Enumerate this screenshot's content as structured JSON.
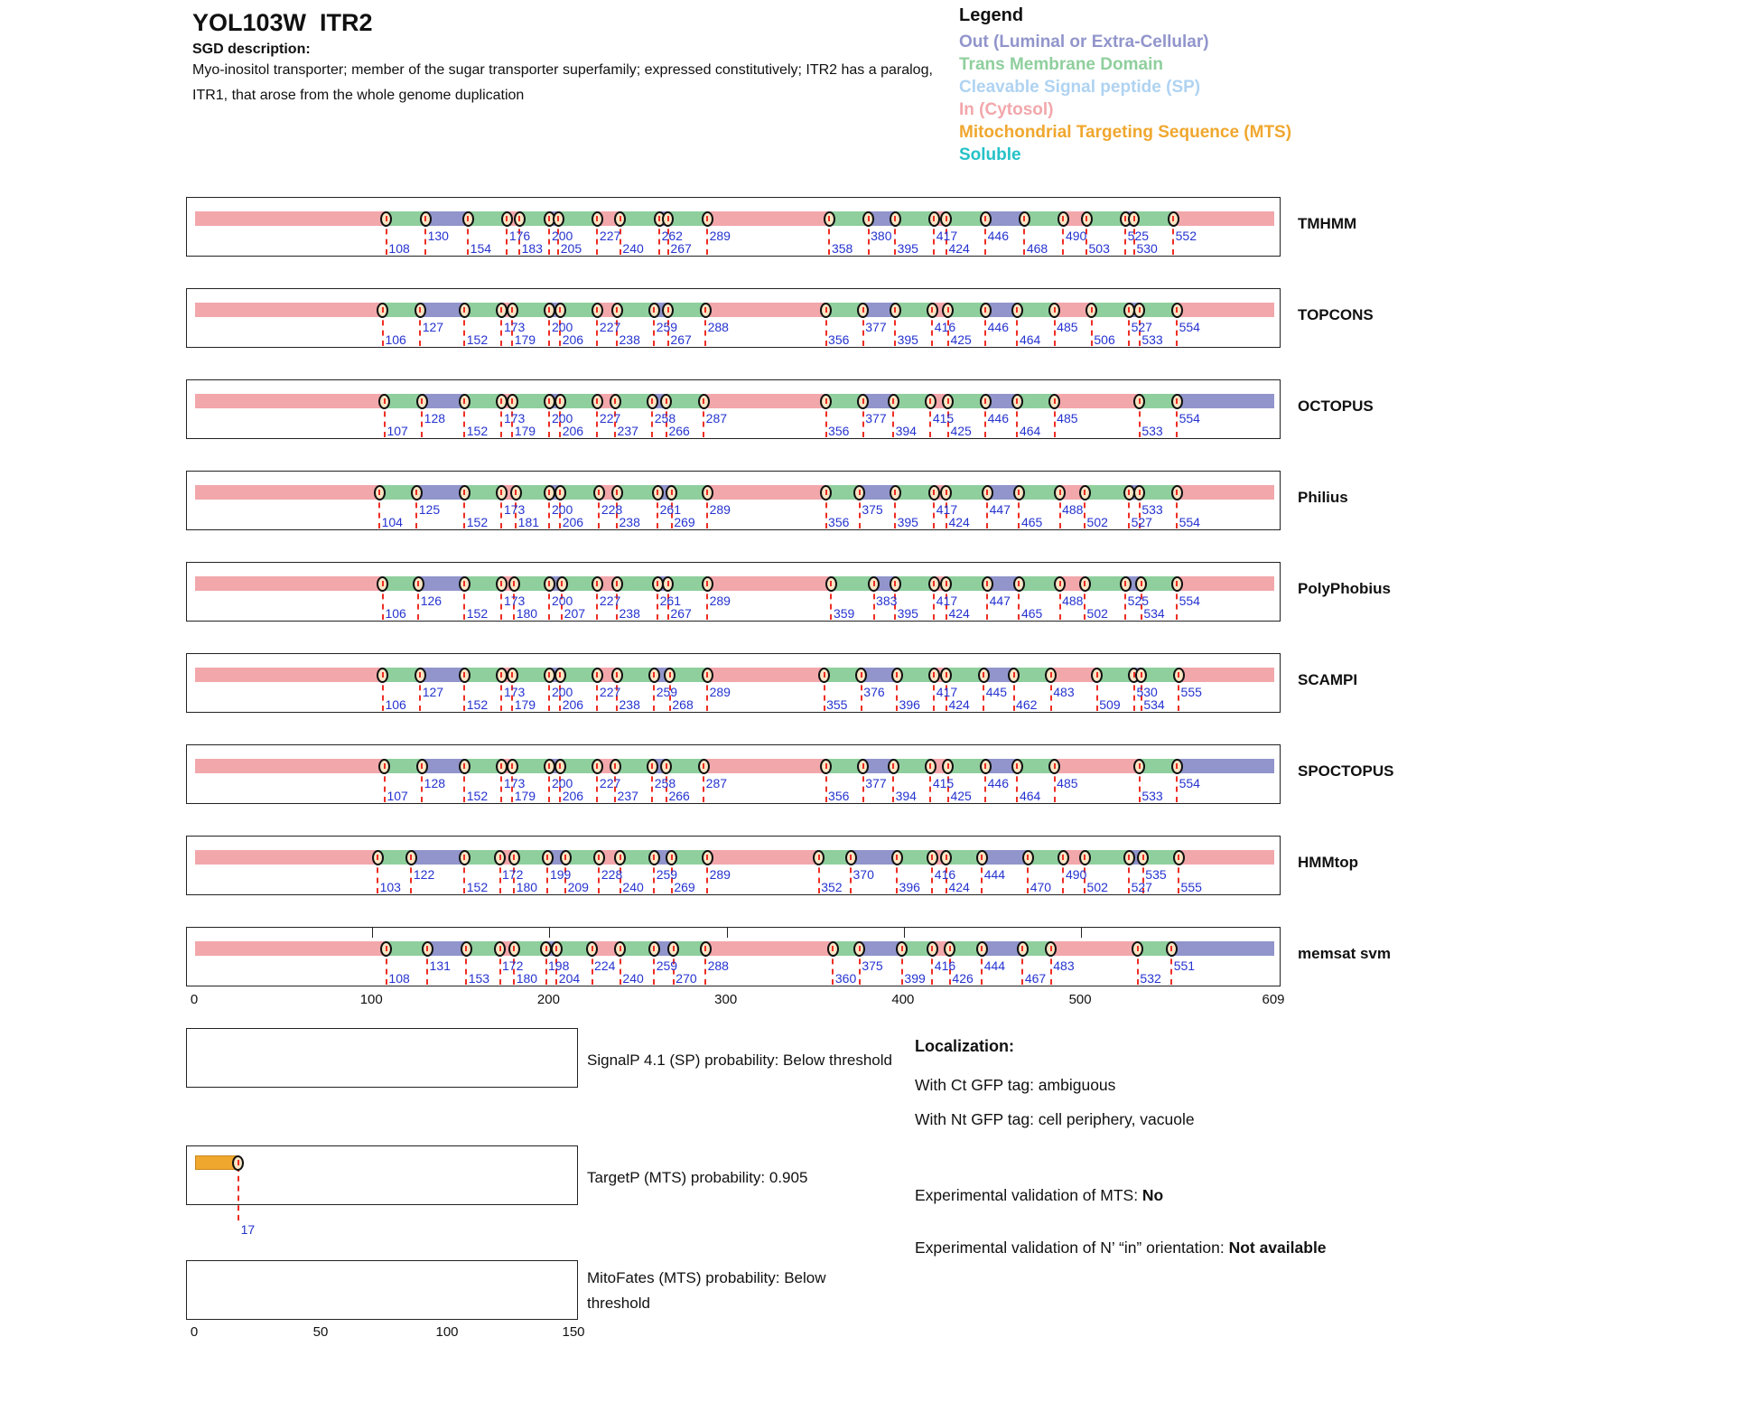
{
  "header": {
    "title": "YOL103W  ITR2",
    "sgd_label": "SGD description:",
    "description": "Myo-inositol transporter; member of the sugar transporter superfamily; expressed constitutively; ITR2 has a paralog, ITR1, that arose from the whole genome duplication"
  },
  "colors": {
    "in": "#F2A7AB",
    "tm": "#8FCF9D",
    "out": "#9195CB",
    "sp": "#AFD3F2",
    "mts": "#F0A72E",
    "soluble": "#24C2C7",
    "number_blue": "#2533CF",
    "dash_red": "#EE2E24",
    "marker_fill": "#F8E5C4"
  },
  "legend": {
    "title": "Legend",
    "items": [
      {
        "label": "Out (Luminal or Extra-Cellular)",
        "color_key": "out"
      },
      {
        "label": "Trans Membrane Domain",
        "color_key": "tm"
      },
      {
        "label": "Cleavable Signal peptide (SP)",
        "color_key": "sp"
      },
      {
        "label": "In (Cytosol)",
        "color_key": "in"
      },
      {
        "label": "Mitochondrial Targeting Sequence (MTS)",
        "color_key": "mts"
      },
      {
        "label": "Soluble",
        "color_key": "soluble"
      }
    ]
  },
  "chart_data": {
    "type": "bar",
    "title": "Membrane topology predictions for YOL103W ITR2",
    "x_range": [
      0,
      609
    ],
    "x_ticks": [
      0,
      100,
      200,
      300,
      400,
      500,
      609
    ],
    "segment_cycle_from_zero": [
      "in",
      "tm",
      "out",
      "tm"
    ],
    "tracks": [
      {
        "name": "TMHMM",
        "boundaries": [
          [
            108,
            "b"
          ],
          [
            130,
            "t"
          ],
          [
            154,
            "b"
          ],
          [
            176,
            "t"
          ],
          [
            183,
            "b"
          ],
          [
            200,
            "t"
          ],
          [
            205,
            "b"
          ],
          [
            227,
            "t"
          ],
          [
            240,
            "b"
          ],
          [
            262,
            "t"
          ],
          [
            267,
            "b"
          ],
          [
            289,
            "t"
          ],
          [
            358,
            "b"
          ],
          [
            380,
            "t"
          ],
          [
            395,
            "b"
          ],
          [
            417,
            "t"
          ],
          [
            424,
            "b"
          ],
          [
            446,
            "t"
          ],
          [
            468,
            "b"
          ],
          [
            490,
            "t"
          ],
          [
            503,
            "b"
          ],
          [
            525,
            "t"
          ],
          [
            530,
            "b"
          ],
          [
            552,
            "t"
          ]
        ]
      },
      {
        "name": "TOPCONS",
        "boundaries": [
          [
            106,
            "b"
          ],
          [
            127,
            "t"
          ],
          [
            152,
            "b"
          ],
          [
            173,
            "t"
          ],
          [
            179,
            "b"
          ],
          [
            200,
            "t"
          ],
          [
            206,
            "b"
          ],
          [
            227,
            "t"
          ],
          [
            238,
            "b"
          ],
          [
            259,
            "t"
          ],
          [
            267,
            "b"
          ],
          [
            288,
            "t"
          ],
          [
            356,
            "b"
          ],
          [
            377,
            "t"
          ],
          [
            395,
            "b"
          ],
          [
            416,
            "t"
          ],
          [
            425,
            "b"
          ],
          [
            446,
            "t"
          ],
          [
            464,
            "b"
          ],
          [
            485,
            "t"
          ],
          [
            506,
            "b"
          ],
          [
            527,
            "t"
          ],
          [
            533,
            "b"
          ],
          [
            554,
            "t"
          ]
        ]
      },
      {
        "name": "OCTOPUS",
        "boundaries": [
          [
            107,
            "b"
          ],
          [
            128,
            "t"
          ],
          [
            152,
            "b"
          ],
          [
            173,
            "t"
          ],
          [
            179,
            "b"
          ],
          [
            200,
            "t"
          ],
          [
            206,
            "b"
          ],
          [
            227,
            "t"
          ],
          [
            237,
            "b"
          ],
          [
            258,
            "t"
          ],
          [
            266,
            "b"
          ],
          [
            287,
            "t"
          ],
          [
            356,
            "b"
          ],
          [
            377,
            "t"
          ],
          [
            394,
            "b"
          ],
          [
            415,
            "t"
          ],
          [
            425,
            "b"
          ],
          [
            446,
            "t"
          ],
          [
            464,
            "b"
          ],
          [
            485,
            "t"
          ],
          [
            533,
            "b"
          ],
          [
            554,
            "t"
          ]
        ]
      },
      {
        "name": "Philius",
        "boundaries": [
          [
            104,
            "b"
          ],
          [
            125,
            "t"
          ],
          [
            152,
            "b"
          ],
          [
            173,
            "t"
          ],
          [
            181,
            "b"
          ],
          [
            200,
            "t"
          ],
          [
            206,
            "b"
          ],
          [
            228,
            "t"
          ],
          [
            238,
            "b"
          ],
          [
            261,
            "t"
          ],
          [
            269,
            "b"
          ],
          [
            289,
            "t"
          ],
          [
            356,
            "b"
          ],
          [
            375,
            "t"
          ],
          [
            395,
            "b"
          ],
          [
            417,
            "t"
          ],
          [
            424,
            "b"
          ],
          [
            447,
            "t"
          ],
          [
            465,
            "b"
          ],
          [
            488,
            "t"
          ],
          [
            502,
            "b"
          ],
          [
            527,
            "b"
          ],
          [
            533,
            "t"
          ],
          [
            554,
            "b"
          ]
        ]
      },
      {
        "name": "PolyPhobius",
        "boundaries": [
          [
            106,
            "b"
          ],
          [
            126,
            "t"
          ],
          [
            152,
            "b"
          ],
          [
            173,
            "t"
          ],
          [
            180,
            "b"
          ],
          [
            200,
            "t"
          ],
          [
            207,
            "b"
          ],
          [
            227,
            "t"
          ],
          [
            238,
            "b"
          ],
          [
            261,
            "t"
          ],
          [
            267,
            "b"
          ],
          [
            289,
            "t"
          ],
          [
            359,
            "b"
          ],
          [
            383,
            "t"
          ],
          [
            395,
            "b"
          ],
          [
            417,
            "t"
          ],
          [
            424,
            "b"
          ],
          [
            447,
            "t"
          ],
          [
            465,
            "b"
          ],
          [
            488,
            "t"
          ],
          [
            502,
            "b"
          ],
          [
            525,
            "t"
          ],
          [
            534,
            "b"
          ],
          [
            554,
            "t"
          ]
        ]
      },
      {
        "name": "SCAMPI",
        "boundaries": [
          [
            106,
            "b"
          ],
          [
            127,
            "t"
          ],
          [
            152,
            "b"
          ],
          [
            173,
            "t"
          ],
          [
            179,
            "b"
          ],
          [
            200,
            "t"
          ],
          [
            206,
            "b"
          ],
          [
            227,
            "t"
          ],
          [
            238,
            "b"
          ],
          [
            259,
            "t"
          ],
          [
            268,
            "b"
          ],
          [
            289,
            "t"
          ],
          [
            355,
            "b"
          ],
          [
            376,
            "t"
          ],
          [
            396,
            "b"
          ],
          [
            417,
            "t"
          ],
          [
            424,
            "b"
          ],
          [
            445,
            "t"
          ],
          [
            462,
            "b"
          ],
          [
            483,
            "t"
          ],
          [
            509,
            "b"
          ],
          [
            530,
            "t"
          ],
          [
            534,
            "b"
          ],
          [
            555,
            "t"
          ]
        ]
      },
      {
        "name": "SPOCTOPUS",
        "boundaries": [
          [
            107,
            "b"
          ],
          [
            128,
            "t"
          ],
          [
            152,
            "b"
          ],
          [
            173,
            "t"
          ],
          [
            179,
            "b"
          ],
          [
            200,
            "t"
          ],
          [
            206,
            "b"
          ],
          [
            227,
            "t"
          ],
          [
            237,
            "b"
          ],
          [
            258,
            "t"
          ],
          [
            266,
            "b"
          ],
          [
            287,
            "t"
          ],
          [
            356,
            "b"
          ],
          [
            377,
            "t"
          ],
          [
            394,
            "b"
          ],
          [
            415,
            "t"
          ],
          [
            425,
            "b"
          ],
          [
            446,
            "t"
          ],
          [
            464,
            "b"
          ],
          [
            485,
            "t"
          ],
          [
            533,
            "b"
          ],
          [
            554,
            "t"
          ]
        ]
      },
      {
        "name": "HMMtop",
        "boundaries": [
          [
            103,
            "b"
          ],
          [
            122,
            "t"
          ],
          [
            152,
            "b"
          ],
          [
            172,
            "t"
          ],
          [
            180,
            "b"
          ],
          [
            199,
            "t"
          ],
          [
            209,
            "b"
          ],
          [
            228,
            "t"
          ],
          [
            240,
            "b"
          ],
          [
            259,
            "t"
          ],
          [
            269,
            "b"
          ],
          [
            289,
            "t"
          ],
          [
            352,
            "b"
          ],
          [
            370,
            "t"
          ],
          [
            396,
            "b"
          ],
          [
            416,
            "t"
          ],
          [
            424,
            "b"
          ],
          [
            444,
            "t"
          ],
          [
            470,
            "b"
          ],
          [
            490,
            "t"
          ],
          [
            502,
            "b"
          ],
          [
            527,
            "b"
          ],
          [
            535,
            "t"
          ],
          [
            555,
            "b"
          ]
        ]
      },
      {
        "name": "memsat svm",
        "top_ticks": [
          100,
          200,
          300,
          400,
          500
        ],
        "boundaries": [
          [
            108,
            "b"
          ],
          [
            131,
            "t"
          ],
          [
            153,
            "b"
          ],
          [
            172,
            "t"
          ],
          [
            180,
            "b"
          ],
          [
            198,
            "t"
          ],
          [
            204,
            "b"
          ],
          [
            224,
            "t"
          ],
          [
            240,
            "b"
          ],
          [
            259,
            "t"
          ],
          [
            270,
            "b"
          ],
          [
            288,
            "t"
          ],
          [
            360,
            "b"
          ],
          [
            375,
            "t"
          ],
          [
            399,
            "b"
          ],
          [
            416,
            "t"
          ],
          [
            426,
            "b"
          ],
          [
            444,
            "t"
          ],
          [
            467,
            "b"
          ],
          [
            483,
            "t"
          ],
          [
            532,
            "b"
          ],
          [
            551,
            "t"
          ]
        ]
      }
    ],
    "probability_plots": {
      "x_range": [
        0,
        150
      ],
      "x_ticks": [
        0,
        50,
        100,
        150
      ],
      "plots": [
        {
          "name": "SignalP",
          "label": "SignalP 4.1 (SP) probability: Below threshold"
        },
        {
          "name": "TargetP",
          "label": "TargetP (MTS) probability: 0.905",
          "bar_start": 0,
          "bar_end": 17,
          "marker": 17,
          "marker_label": "17",
          "bar_color_key": "mts"
        },
        {
          "name": "MitoFates",
          "label": "MitoFates (MTS) probability: Below threshold"
        }
      ]
    }
  },
  "localization": {
    "title": "Localization:",
    "line1": "With Ct GFP tag: ambiguous",
    "line2": "With Nt GFP tag: cell periphery, vacuole",
    "mts_prefix": "Experimental validation of MTS: ",
    "mts_value": "No",
    "orientation_prefix": "Experimental validation of N’ “in” orientation: ",
    "orientation_value": "Not available"
  }
}
